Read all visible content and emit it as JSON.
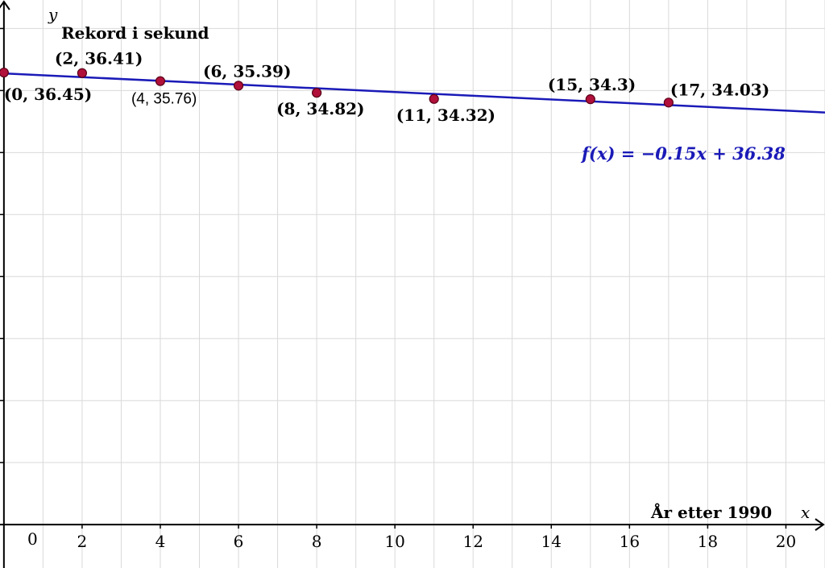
{
  "chart_data": {
    "type": "scatter",
    "xlabel": "År etter 1990",
    "ylabel": "Rekord i sekund",
    "x_axis_symbol": "x",
    "y_axis_symbol": "y",
    "xlim": [
      -0.1,
      21
    ],
    "ylim": [
      -3.5,
      42.3
    ],
    "x_ticks": [
      0,
      2,
      4,
      6,
      8,
      10,
      12,
      14,
      16,
      18,
      20
    ],
    "y_ticks": [
      5,
      10,
      15,
      20,
      25,
      30,
      35,
      40
    ],
    "origin_label": "0",
    "grid": true,
    "points": [
      {
        "x": 0,
        "y": 36.45,
        "label": "(0, 36.45)"
      },
      {
        "x": 2,
        "y": 36.41,
        "label": "(2, 36.41)"
      },
      {
        "x": 4,
        "y": 35.76,
        "label": "(4, 35.76)"
      },
      {
        "x": 6,
        "y": 35.39,
        "label": "(6, 35.39)"
      },
      {
        "x": 8,
        "y": 34.82,
        "label": "(8, 34.82)"
      },
      {
        "x": 11,
        "y": 34.32,
        "label": "(11, 34.32)"
      },
      {
        "x": 15,
        "y": 34.3,
        "label": "(15, 34.3)"
      },
      {
        "x": 17,
        "y": 34.03,
        "label": "(17, 34.03)"
      }
    ],
    "regression_line": {
      "slope": -0.15,
      "intercept": 36.38,
      "label": "f(x) = −0.15x + 36.38"
    },
    "colors": {
      "point_fill": "#b0103a",
      "point_stroke": "#5a0018",
      "line": "#1a1ab8",
      "grid": "#d9d9d9",
      "axis": "#000000"
    }
  }
}
